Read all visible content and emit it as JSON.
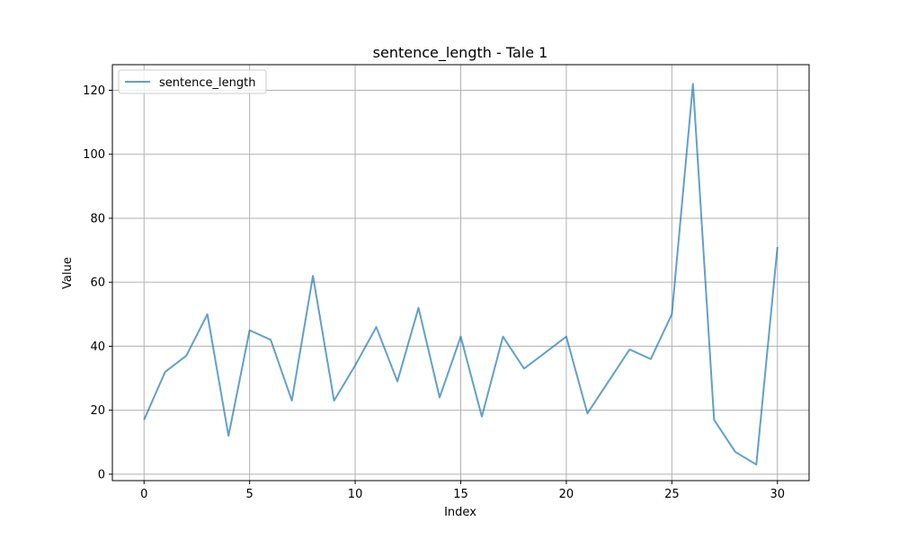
{
  "chart_data": {
    "type": "line",
    "title": "sentence_length - Tale 1",
    "xlabel": "Index",
    "ylabel": "Value",
    "xlim": [
      -1.5,
      31.5
    ],
    "ylim": [
      -2,
      128
    ],
    "xticks": [
      0,
      5,
      10,
      15,
      20,
      25,
      30
    ],
    "yticks": [
      0,
      20,
      40,
      60,
      80,
      100,
      120
    ],
    "grid": true,
    "legend_position": "upper left",
    "series": [
      {
        "name": "sentence_length",
        "color": "#1f77b4",
        "x": [
          0,
          1,
          2,
          3,
          4,
          5,
          6,
          7,
          8,
          9,
          10,
          11,
          12,
          13,
          14,
          15,
          16,
          17,
          18,
          19,
          20,
          21,
          22,
          23,
          24,
          25,
          26,
          27,
          28,
          29,
          30
        ],
        "y": [
          17,
          32,
          37,
          50,
          12,
          45,
          42,
          23,
          62,
          23,
          34,
          46,
          29,
          52,
          24,
          43,
          18,
          43,
          33,
          38,
          43,
          19,
          29,
          39,
          36,
          50,
          122,
          17,
          7,
          3,
          71
        ]
      }
    ]
  }
}
